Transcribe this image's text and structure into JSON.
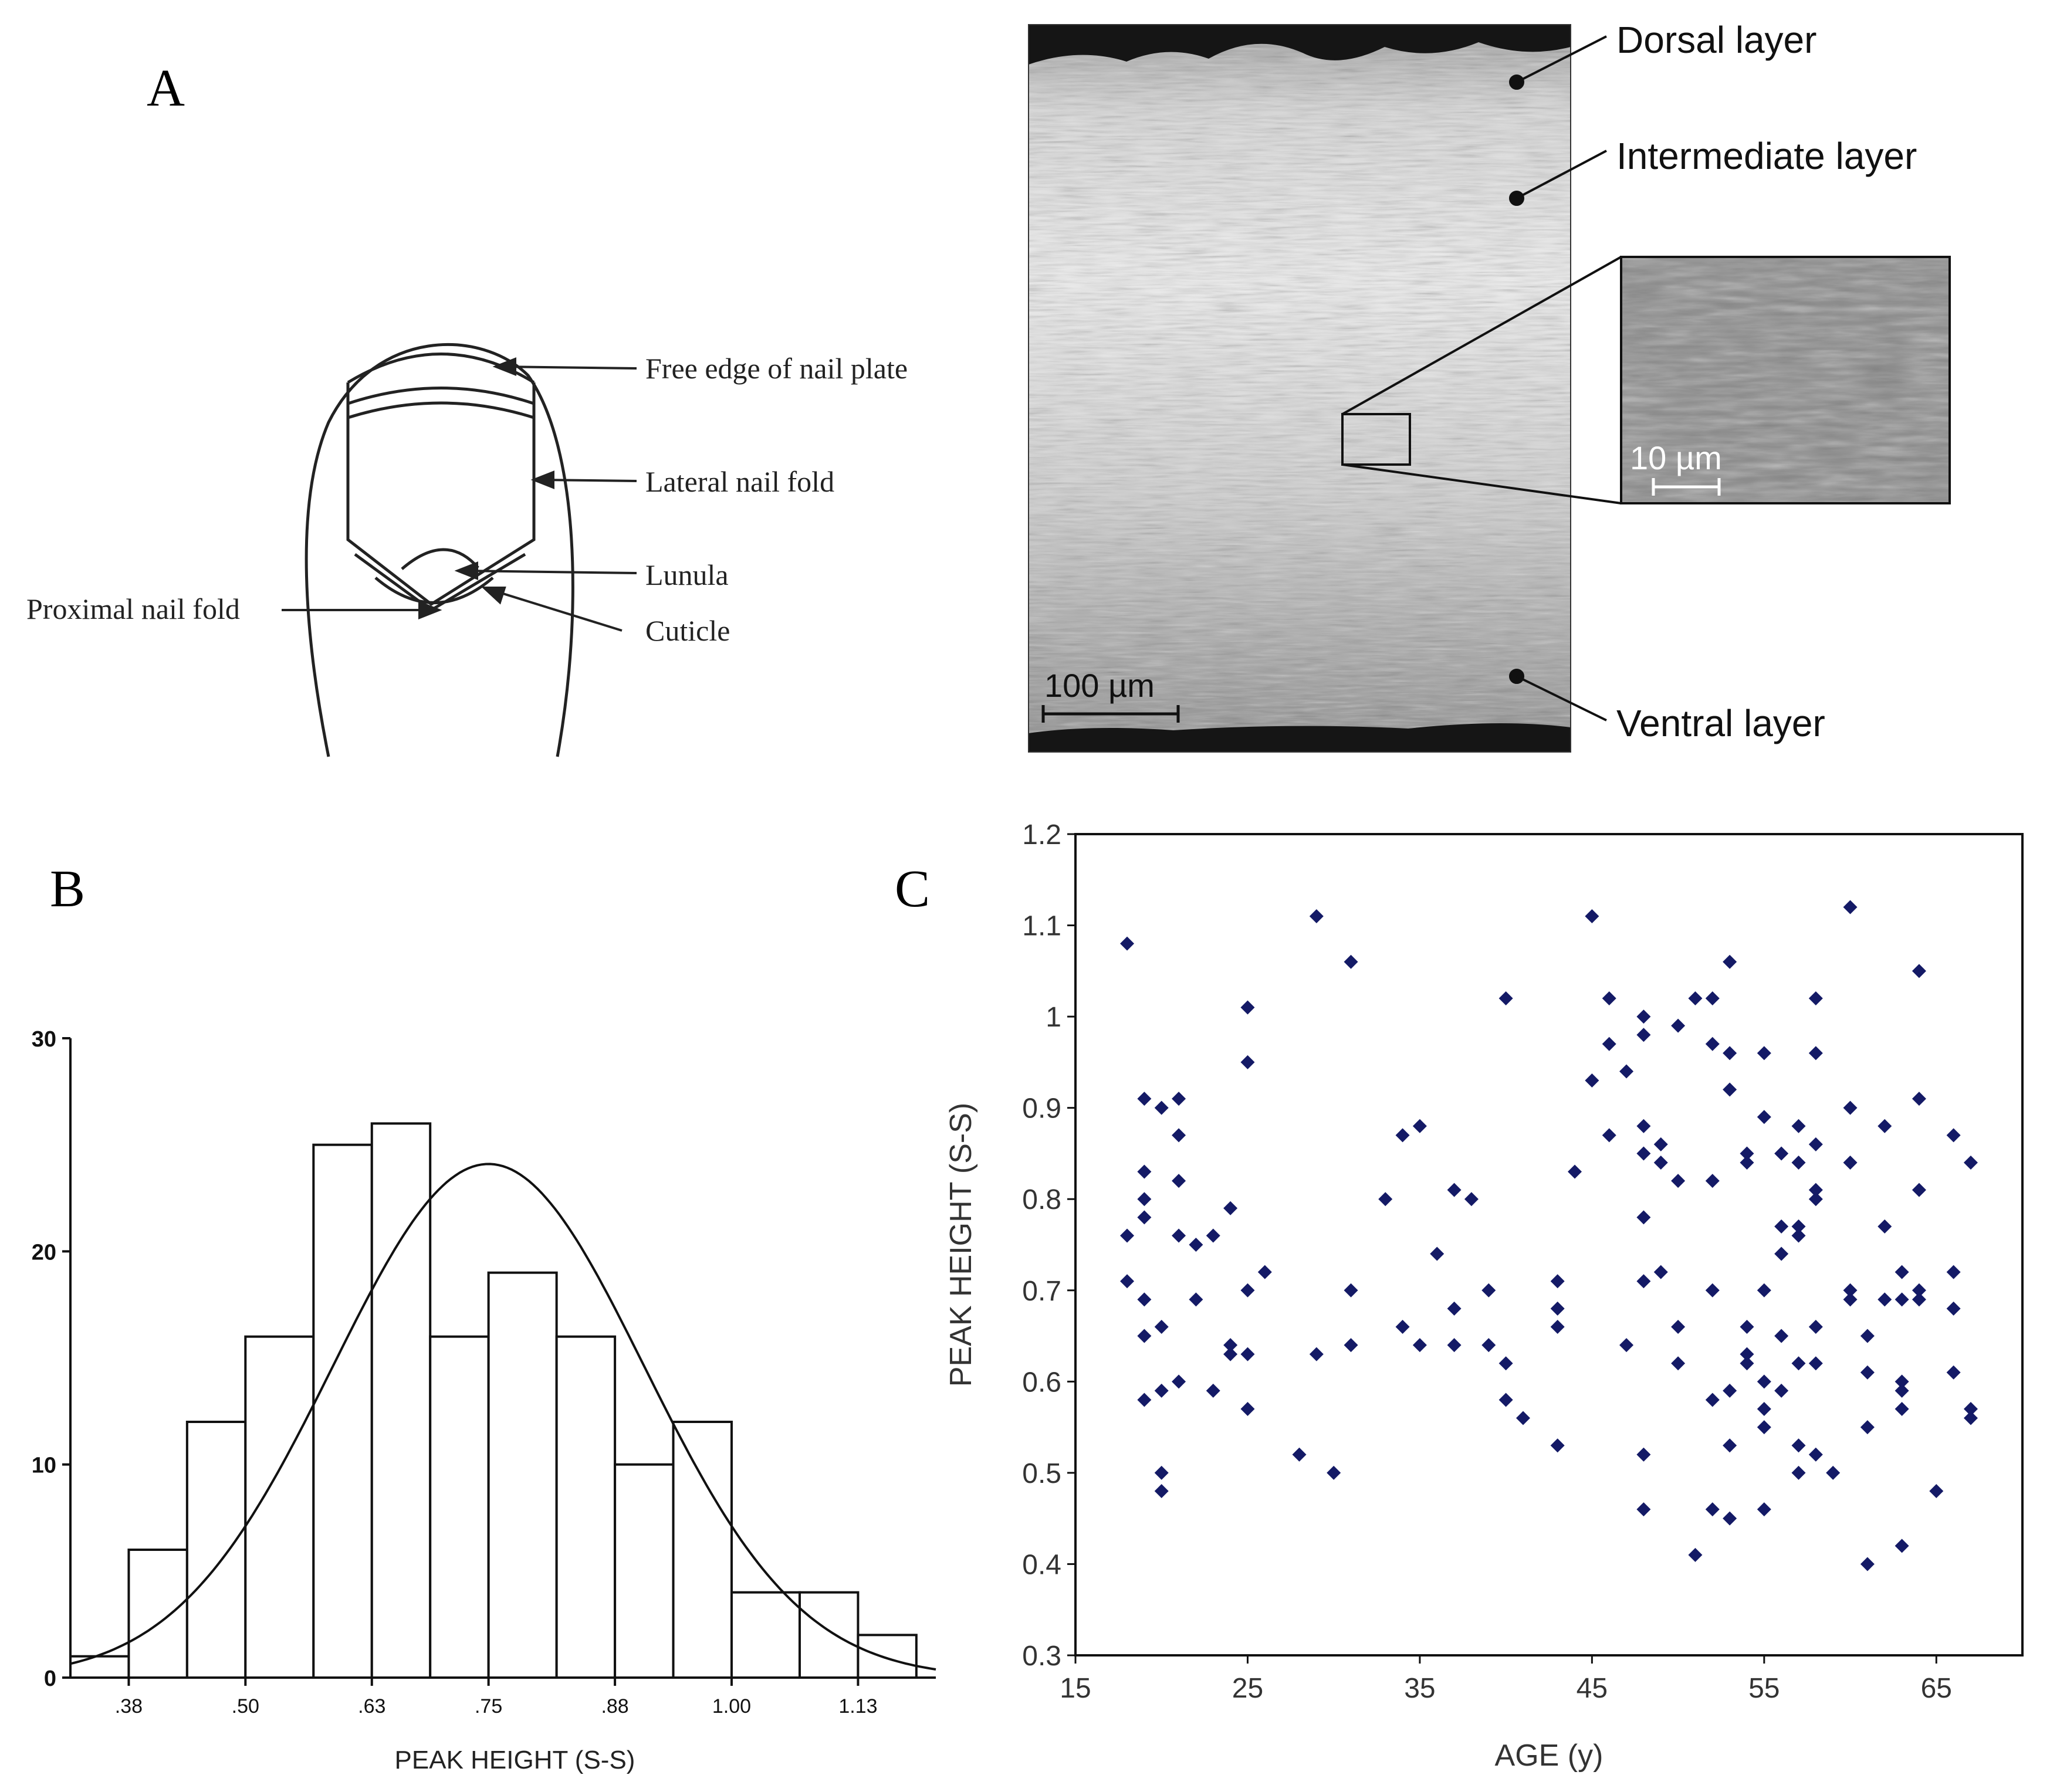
{
  "panels": {
    "a": {
      "letter": "A"
    },
    "b": {
      "letter": "B"
    },
    "c": {
      "letter": "C"
    }
  },
  "nail_diagram": {
    "labels": {
      "free_edge": "Free edge of nail plate",
      "lateral_fold": "Lateral nail fold",
      "lunula": "Lunula",
      "cuticle": "Cuticle",
      "proximal_fold": "Proximal nail fold"
    }
  },
  "micrograph": {
    "layers": {
      "dorsal": "Dorsal layer",
      "intermediate": "Intermediate layer",
      "ventral": "Ventral layer"
    },
    "scale_bar": "100 µm",
    "inset_scale_bar": "10 µm"
  },
  "chart_data": [
    {
      "type": "bar",
      "subtype": "histogram_with_normal_curve",
      "title": "",
      "xlabel": "PEAK HEIGHT (S-S)",
      "ylabel": "",
      "x_tick_labels": [
        ".38",
        ".50",
        ".63",
        ".75",
        ".88",
        "1.00",
        "1.13"
      ],
      "x_ticks": [
        0.38,
        0.5,
        0.63,
        0.75,
        0.88,
        1.0,
        1.13
      ],
      "y_ticks": [
        0,
        10,
        20,
        30
      ],
      "ylim": [
        0,
        30
      ],
      "xlim": [
        0.32,
        1.21
      ],
      "bins": [
        {
          "from": 0.32,
          "to": 0.38,
          "count": 1
        },
        {
          "from": 0.38,
          "to": 0.44,
          "count": 6
        },
        {
          "from": 0.44,
          "to": 0.5,
          "count": 12
        },
        {
          "from": 0.5,
          "to": 0.57,
          "count": 16
        },
        {
          "from": 0.57,
          "to": 0.63,
          "count": 25
        },
        {
          "from": 0.63,
          "to": 0.69,
          "count": 26
        },
        {
          "from": 0.69,
          "to": 0.75,
          "count": 16
        },
        {
          "from": 0.75,
          "to": 0.82,
          "count": 19
        },
        {
          "from": 0.82,
          "to": 0.88,
          "count": 16
        },
        {
          "from": 0.88,
          "to": 0.94,
          "count": 10
        },
        {
          "from": 0.94,
          "to": 1.0,
          "count": 12
        },
        {
          "from": 1.0,
          "to": 1.07,
          "count": 4
        },
        {
          "from": 1.07,
          "to": 1.13,
          "count": 4
        },
        {
          "from": 1.13,
          "to": 1.19,
          "count": 2
        }
      ],
      "normal_curve": {
        "mean": 0.75,
        "sd": 0.16,
        "peak": 24.1
      }
    },
    {
      "type": "scatter",
      "title": "",
      "xlabel": "AGE (y)",
      "ylabel": "PEAK HEIGHT (S-S)",
      "xlim": [
        15,
        70
      ],
      "ylim": [
        0.3,
        1.2
      ],
      "x_ticks": [
        15,
        25,
        35,
        45,
        55,
        65
      ],
      "y_ticks": [
        0.3,
        0.4,
        0.5,
        0.6,
        0.7,
        0.8,
        0.9,
        1,
        1.1,
        1.2
      ],
      "y_tick_labels": [
        "0.3",
        "0.4",
        "0.5",
        "0.6",
        "0.7",
        "0.8",
        "0.9",
        "1",
        "1.1",
        "1.2"
      ],
      "marker_color": "#141a66",
      "points": [
        [
          18,
          1.08
        ],
        [
          18,
          0.76
        ],
        [
          18,
          0.71
        ],
        [
          19,
          0.91
        ],
        [
          19,
          0.83
        ],
        [
          19,
          0.8
        ],
        [
          19,
          0.78
        ],
        [
          19,
          0.69
        ],
        [
          19,
          0.65
        ],
        [
          19,
          0.58
        ],
        [
          20,
          0.9
        ],
        [
          20,
          0.66
        ],
        [
          20,
          0.59
        ],
        [
          20,
          0.5
        ],
        [
          20,
          0.48
        ],
        [
          21,
          0.91
        ],
        [
          21,
          0.87
        ],
        [
          21,
          0.82
        ],
        [
          21,
          0.76
        ],
        [
          21,
          0.6
        ],
        [
          22,
          0.75
        ],
        [
          22,
          0.69
        ],
        [
          23,
          0.76
        ],
        [
          23,
          0.59
        ],
        [
          24,
          0.79
        ],
        [
          24,
          0.64
        ],
        [
          24,
          0.63
        ],
        [
          25,
          1.01
        ],
        [
          25,
          0.95
        ],
        [
          25,
          0.7
        ],
        [
          25,
          0.63
        ],
        [
          25,
          0.57
        ],
        [
          26,
          0.72
        ],
        [
          28,
          0.52
        ],
        [
          29,
          1.11
        ],
        [
          29,
          0.63
        ],
        [
          30,
          0.5
        ],
        [
          31,
          1.06
        ],
        [
          31,
          0.7
        ],
        [
          31,
          0.64
        ],
        [
          33,
          0.8
        ],
        [
          34,
          0.87
        ],
        [
          34,
          0.66
        ],
        [
          35,
          0.88
        ],
        [
          35,
          0.64
        ],
        [
          36,
          0.74
        ],
        [
          37,
          0.81
        ],
        [
          37,
          0.68
        ],
        [
          37,
          0.64
        ],
        [
          38,
          0.8
        ],
        [
          39,
          0.7
        ],
        [
          39,
          0.64
        ],
        [
          40,
          1.02
        ],
        [
          40,
          0.62
        ],
        [
          40,
          0.58
        ],
        [
          41,
          0.56
        ],
        [
          43,
          0.71
        ],
        [
          43,
          0.68
        ],
        [
          43,
          0.66
        ],
        [
          43,
          0.53
        ],
        [
          44,
          0.83
        ],
        [
          45,
          1.11
        ],
        [
          45,
          0.93
        ],
        [
          46,
          1.02
        ],
        [
          46,
          0.97
        ],
        [
          46,
          0.87
        ],
        [
          47,
          0.94
        ],
        [
          47,
          0.64
        ],
        [
          48,
          1.0
        ],
        [
          48,
          0.98
        ],
        [
          48,
          0.88
        ],
        [
          48,
          0.85
        ],
        [
          48,
          0.78
        ],
        [
          48,
          0.71
        ],
        [
          48,
          0.52
        ],
        [
          48,
          0.46
        ],
        [
          49,
          0.86
        ],
        [
          49,
          0.84
        ],
        [
          49,
          0.72
        ],
        [
          50,
          0.99
        ],
        [
          50,
          0.82
        ],
        [
          50,
          0.66
        ],
        [
          50,
          0.62
        ],
        [
          51,
          1.02
        ],
        [
          51,
          0.41
        ],
        [
          52,
          1.02
        ],
        [
          52,
          0.97
        ],
        [
          52,
          0.82
        ],
        [
          52,
          0.7
        ],
        [
          52,
          0.58
        ],
        [
          52,
          0.46
        ],
        [
          53,
          1.06
        ],
        [
          53,
          0.96
        ],
        [
          53,
          0.92
        ],
        [
          53,
          0.59
        ],
        [
          53,
          0.53
        ],
        [
          53,
          0.45
        ],
        [
          54,
          0.85
        ],
        [
          54,
          0.84
        ],
        [
          54,
          0.66
        ],
        [
          54,
          0.63
        ],
        [
          54,
          0.62
        ],
        [
          55,
          0.96
        ],
        [
          55,
          0.89
        ],
        [
          55,
          0.7
        ],
        [
          55,
          0.6
        ],
        [
          55,
          0.57
        ],
        [
          55,
          0.55
        ],
        [
          55,
          0.46
        ],
        [
          56,
          0.85
        ],
        [
          56,
          0.77
        ],
        [
          56,
          0.74
        ],
        [
          56,
          0.65
        ],
        [
          56,
          0.59
        ],
        [
          57,
          0.88
        ],
        [
          57,
          0.84
        ],
        [
          57,
          0.77
        ],
        [
          57,
          0.76
        ],
        [
          57,
          0.62
        ],
        [
          57,
          0.53
        ],
        [
          57,
          0.5
        ],
        [
          58,
          1.02
        ],
        [
          58,
          0.96
        ],
        [
          58,
          0.86
        ],
        [
          58,
          0.81
        ],
        [
          58,
          0.8
        ],
        [
          58,
          0.66
        ],
        [
          58,
          0.62
        ],
        [
          58,
          0.52
        ],
        [
          59,
          0.5
        ],
        [
          60,
          1.12
        ],
        [
          60,
          0.9
        ],
        [
          60,
          0.84
        ],
        [
          60,
          0.7
        ],
        [
          60,
          0.69
        ],
        [
          61,
          0.65
        ],
        [
          61,
          0.61
        ],
        [
          61,
          0.55
        ],
        [
          61,
          0.4
        ],
        [
          62,
          0.88
        ],
        [
          62,
          0.77
        ],
        [
          62,
          0.69
        ],
        [
          63,
          0.72
        ],
        [
          63,
          0.69
        ],
        [
          63,
          0.6
        ],
        [
          63,
          0.59
        ],
        [
          63,
          0.57
        ],
        [
          63,
          0.42
        ],
        [
          64,
          1.05
        ],
        [
          64,
          0.91
        ],
        [
          64,
          0.81
        ],
        [
          64,
          0.7
        ],
        [
          64,
          0.69
        ],
        [
          65,
          0.48
        ],
        [
          66,
          0.87
        ],
        [
          66,
          0.72
        ],
        [
          66,
          0.68
        ],
        [
          66,
          0.61
        ],
        [
          67,
          0.84
        ],
        [
          67,
          0.57
        ],
        [
          67,
          0.56
        ]
      ]
    }
  ]
}
